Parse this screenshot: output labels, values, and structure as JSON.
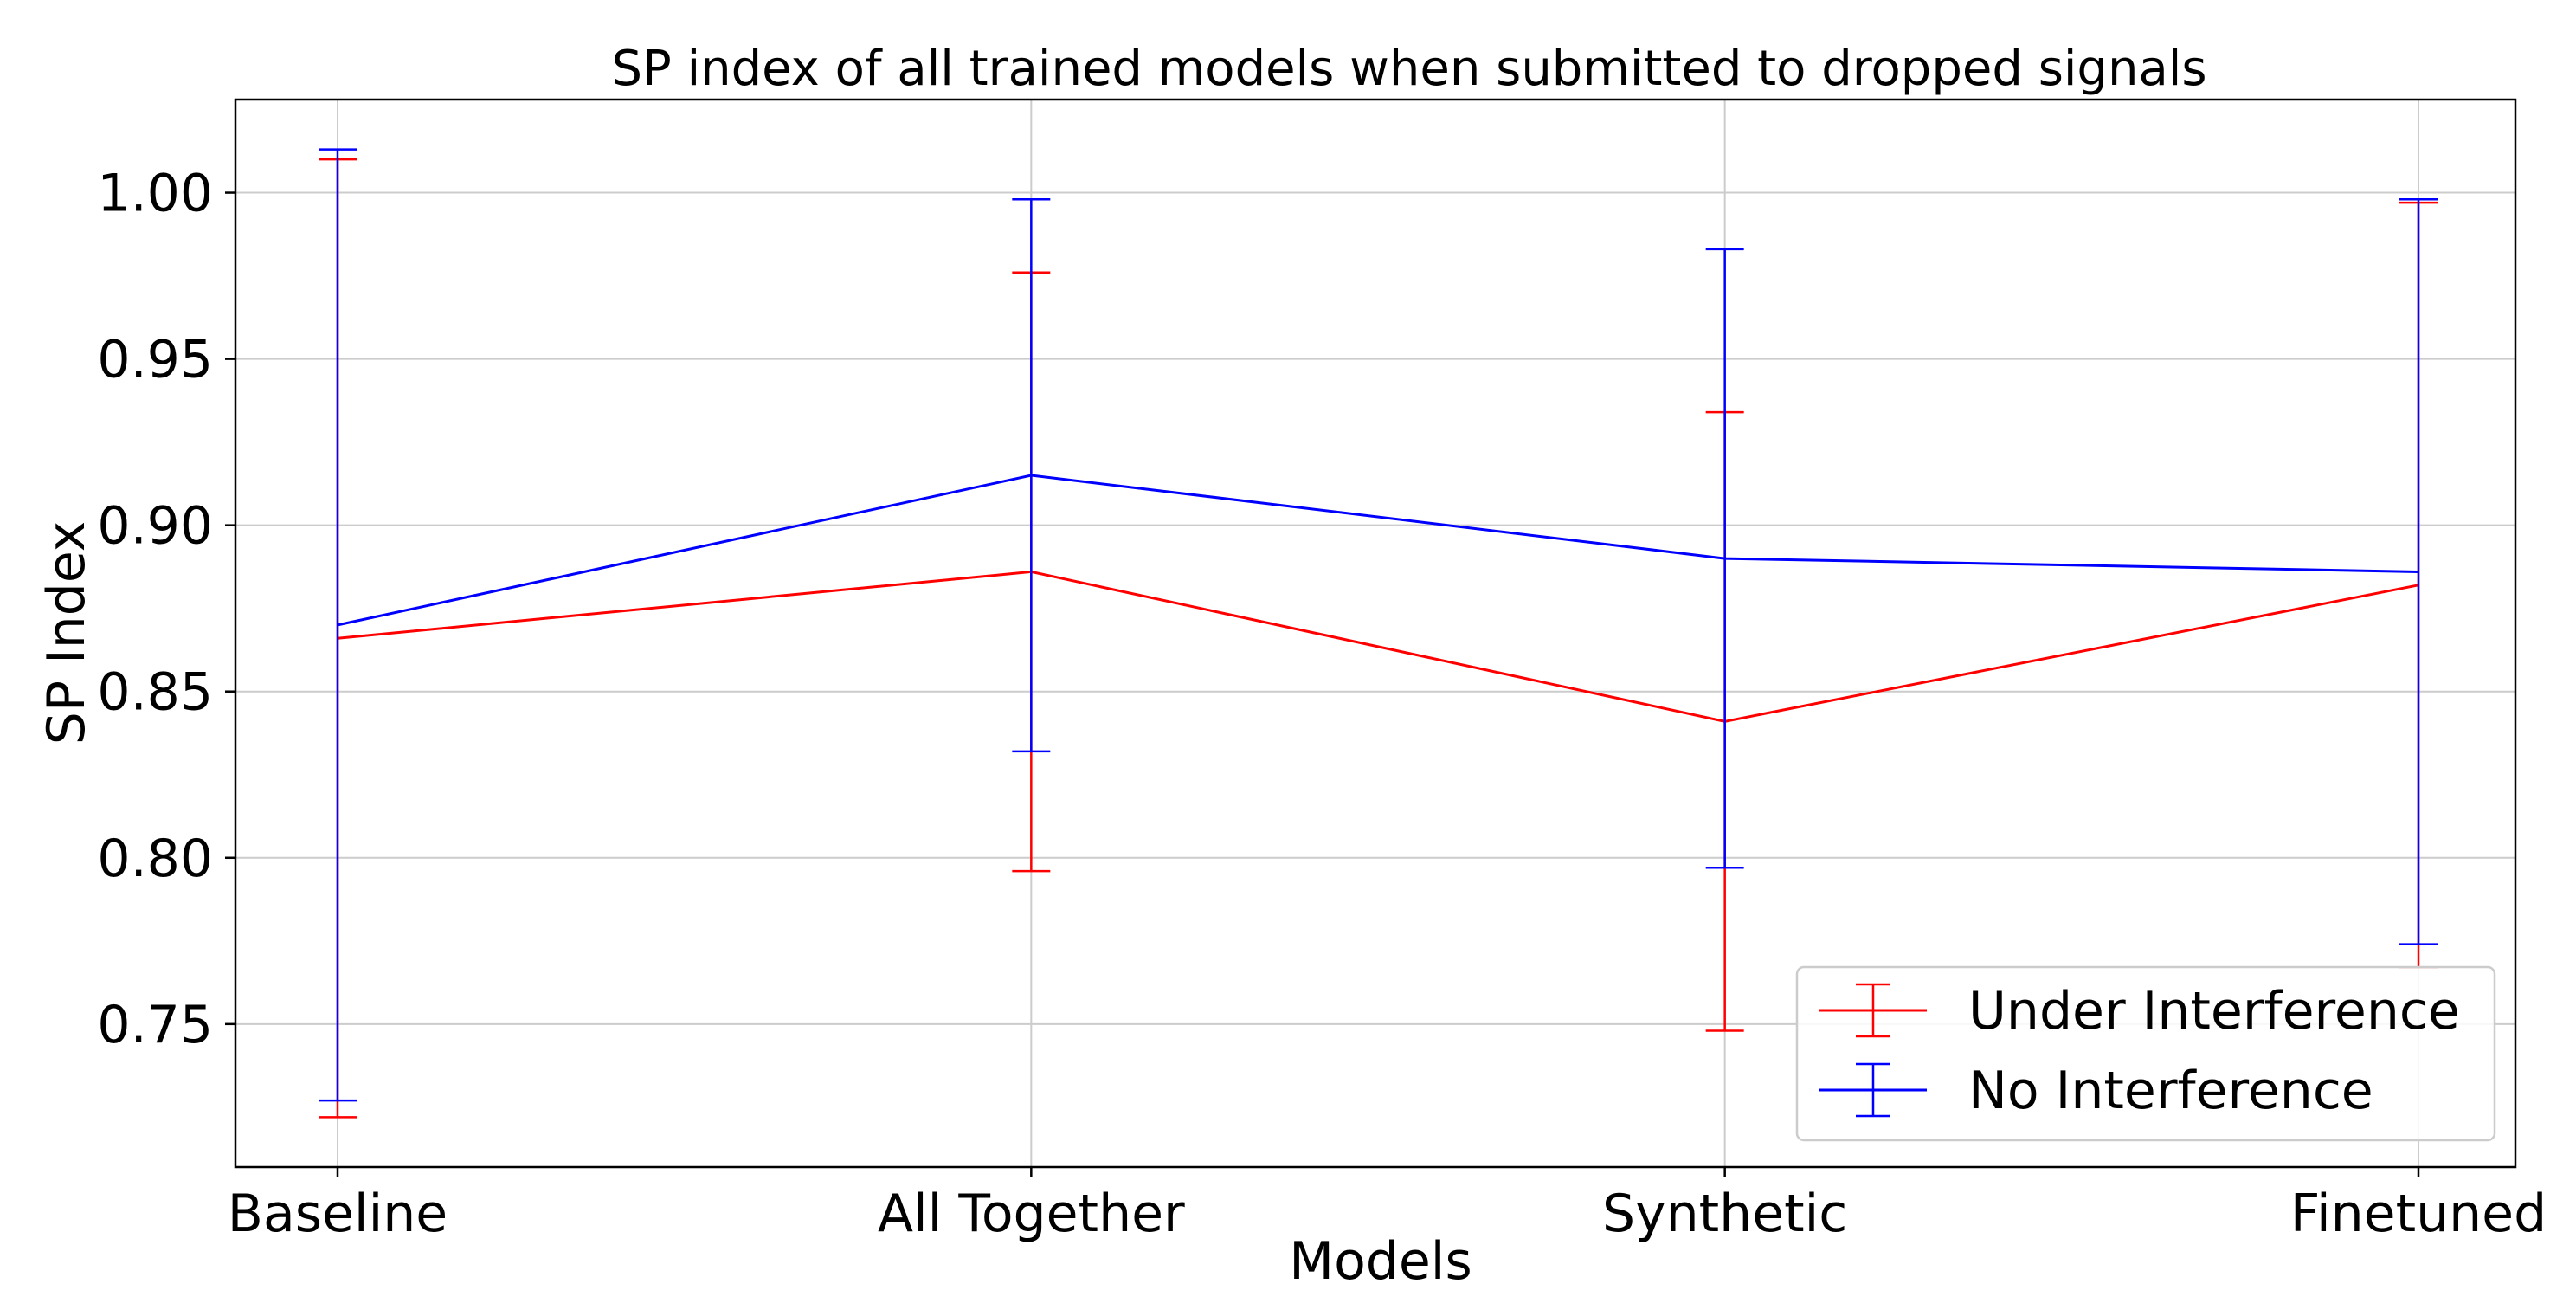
{
  "chart_data": {
    "type": "line",
    "title": "SP index of all trained models when submitted to dropped signals",
    "xlabel": "Models",
    "ylabel": "SP Index",
    "categories": [
      "Baseline",
      "All Together",
      "Synthetic",
      "Finetuned"
    ],
    "ylim": [
      0.707,
      1.028
    ],
    "yticks": [
      0.75,
      0.8,
      0.85,
      0.9,
      0.95,
      1.0
    ],
    "ytick_labels": [
      "0.75",
      "0.80",
      "0.85",
      "0.90",
      "0.95",
      "1.00"
    ],
    "grid": true,
    "legend_position": "bottom-right",
    "error_bars": true,
    "series": [
      {
        "name": "Under Interference",
        "color": "#ff0000",
        "values": [
          0.866,
          0.886,
          0.841,
          0.882
        ],
        "errors": [
          0.144,
          0.09,
          0.093,
          0.115
        ]
      },
      {
        "name": "No Interference",
        "color": "#0000ff",
        "values": [
          0.87,
          0.915,
          0.89,
          0.886
        ],
        "errors": [
          0.143,
          0.083,
          0.093,
          0.112
        ]
      }
    ]
  }
}
